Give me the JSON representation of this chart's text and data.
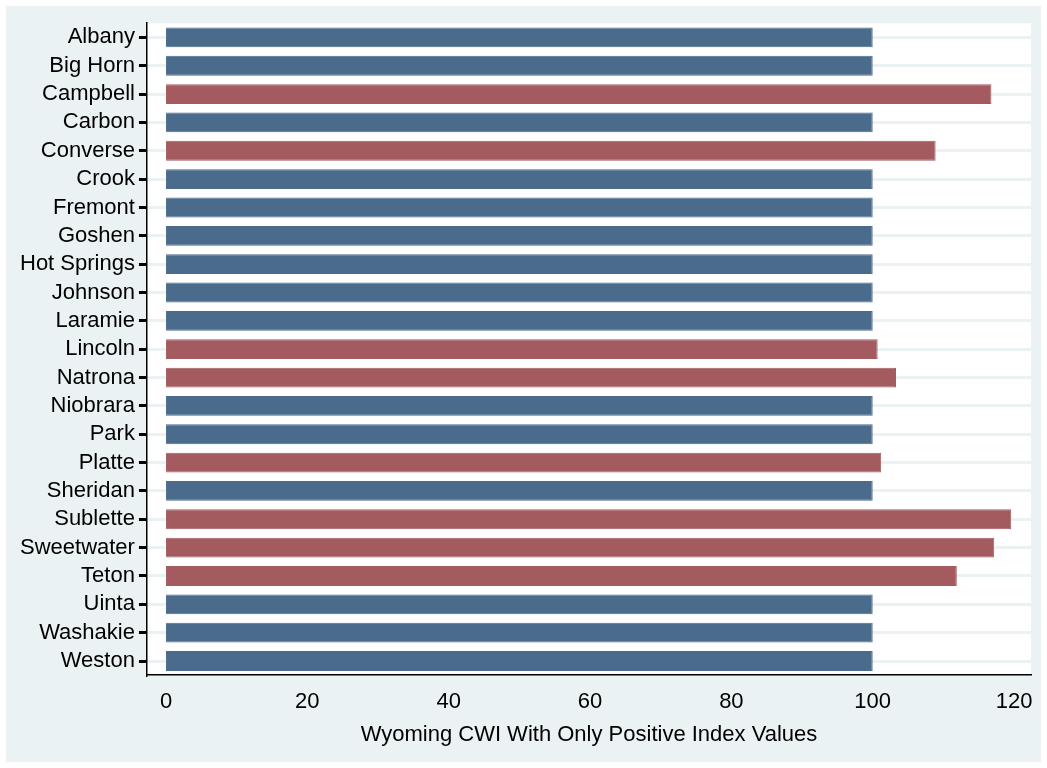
{
  "chart_data": {
    "type": "bar",
    "orientation": "horizontal",
    "xlabel": "Wyoming CWI With Only Positive Index Values",
    "categories": [
      "Albany",
      "Big Horn",
      "Campbell",
      "Carbon",
      "Converse",
      "Crook",
      "Fremont",
      "Goshen",
      "Hot Springs",
      "Johnson",
      "Laramie",
      "Lincoln",
      "Natrona",
      "Niobrara",
      "Park",
      "Platte",
      "Sheridan",
      "Sublette",
      "Sweetwater",
      "Teton",
      "Uinta",
      "Washakie",
      "Weston"
    ],
    "values": [
      100,
      100,
      116.8,
      100,
      108.9,
      100,
      100,
      100,
      100,
      100,
      100,
      100.7,
      103.3,
      100,
      100,
      101.2,
      100,
      119.6,
      117.2,
      111.9,
      100,
      100,
      100
    ],
    "colors": [
      "#4a6b8c",
      "#4a6b8c",
      "#a35b5f",
      "#4a6b8c",
      "#a35b5f",
      "#4a6b8c",
      "#4a6b8c",
      "#4a6b8c",
      "#4a6b8c",
      "#4a6b8c",
      "#4a6b8c",
      "#a35b5f",
      "#a35b5f",
      "#4a6b8c",
      "#4a6b8c",
      "#a35b5f",
      "#4a6b8c",
      "#a35b5f",
      "#a35b5f",
      "#a35b5f",
      "#4a6b8c",
      "#4a6b8c",
      "#4a6b8c"
    ],
    "xlim": [
      -2.7,
      122.4
    ],
    "xticks": [
      0,
      20,
      40,
      60,
      80,
      100,
      120
    ],
    "grid": "y"
  }
}
